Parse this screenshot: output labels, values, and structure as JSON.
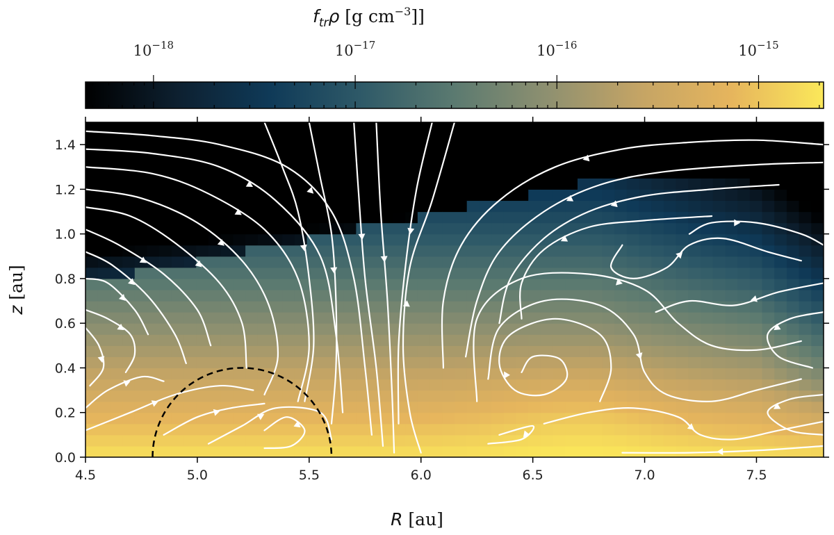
{
  "chart_data": {
    "type": "heatmap",
    "colorbar": {
      "label_var": "f",
      "label_sub": "tr",
      "label_rho": "ρ",
      "label_units": "[g cm",
      "label_exp": "−3",
      "label_close": "]]",
      "scale": "log",
      "range": [
        4.6e-19,
        2.1e-15
      ],
      "ticks": [
        {
          "value": 1e-18,
          "base": "10",
          "exp": "−18"
        },
        {
          "value": 1e-17,
          "base": "10",
          "exp": "−17"
        },
        {
          "value": 1e-16,
          "base": "10",
          "exp": "−16"
        },
        {
          "value": 1e-15,
          "base": "10",
          "exp": "−15"
        }
      ],
      "colormap": [
        "#000000",
        "#0d2030",
        "#0f3a58",
        "#2f5a68",
        "#5b7a70",
        "#8e9070",
        "#c4a465",
        "#e6b55d",
        "#fbe85a"
      ],
      "placement": "top"
    },
    "xaxis": {
      "label_var": "R",
      "label_units": "[au]",
      "range": [
        4.5,
        7.8
      ],
      "ticks": [
        "4.5",
        "5.0",
        "5.5",
        "6.0",
        "6.5",
        "7.0",
        "7.5"
      ],
      "tick_values": [
        4.5,
        5.0,
        5.5,
        6.0,
        6.5,
        7.0,
        7.5
      ]
    },
    "yaxis": {
      "label_var": "z",
      "label_units": "[au]",
      "range": [
        0,
        1.5
      ],
      "ticks": [
        "0.0",
        "0.2",
        "0.4",
        "0.6",
        "0.8",
        "1.0",
        "1.2",
        "1.4"
      ],
      "tick_values": [
        0,
        0.2,
        0.4,
        0.6,
        0.8,
        1.0,
        1.2,
        1.4
      ]
    },
    "overlay_circle": {
      "center_R": 5.2,
      "center_z": 0.0,
      "radius": 0.4,
      "style": "dashed",
      "color": "#000000"
    },
    "streamline_color": "#ffffff",
    "grid": false
  }
}
